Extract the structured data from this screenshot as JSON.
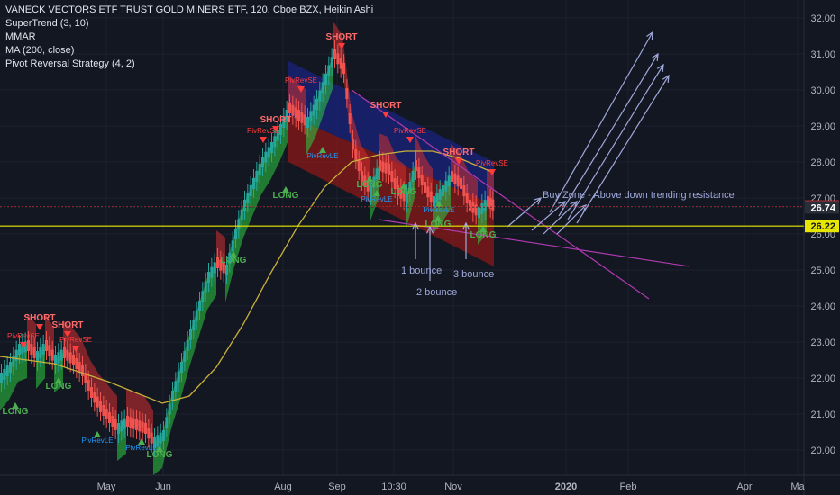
{
  "header": {
    "symbol_line": "VANECK VECTORS ETF TRUST GOLD MINERS ETF, 120, Cboe BZX, Heikin Ashi",
    "indicators": [
      "SuperTrend (3, 10)",
      "MMAR",
      "MA (200, close)",
      "Pivot Reversal Strategy (4, 2)"
    ]
  },
  "colors": {
    "background": "#131722",
    "grid": "#1e2230",
    "up": "#26a69a",
    "down": "#ef5350",
    "ribbon_green": "#2ecc40",
    "ribbon_red": "#d32f2f",
    "ma": "#c9b03a",
    "channel_blue": "#1a237e",
    "channel_red": "#8b1a1a",
    "yellow_line": "#e6e600",
    "magenta_line": "#b03ab0",
    "arrow": "#9fa8da",
    "annotation": "#9fa8da",
    "badge_red": "#d32f2f",
    "badge_dark": "#2a2e39",
    "signal_red": "#ff3b3b",
    "signal_blue": "#2196f3"
  },
  "chart_data": {
    "type": "candlestick",
    "style": "Heikin Ashi",
    "interval": "120",
    "xaxis_ticks": [
      "May",
      "Jun",
      "Aug",
      "Sep",
      "10:30",
      "Nov",
      "2020",
      "Feb",
      "Apr",
      "Ma"
    ],
    "xaxis_tick_x": [
      118,
      181,
      314,
      374,
      437,
      503,
      628,
      697,
      826,
      885
    ],
    "yaxis_ticks": [
      20.0,
      21.0,
      22.0,
      23.0,
      24.0,
      25.0,
      26.0,
      27.0,
      28.0,
      29.0,
      30.0,
      31.0,
      32.0
    ],
    "ylim": [
      19.3,
      32.5
    ],
    "price_labels": [
      {
        "value": 26.76,
        "text": "26.76",
        "style": "red"
      },
      {
        "value": 26.74,
        "text": "26.74",
        "style": "dark"
      },
      {
        "value": 26.22,
        "text": "26.22",
        "style": "yellow"
      }
    ],
    "price_path": [
      [
        0,
        22.0
      ],
      [
        10,
        22.3
      ],
      [
        20,
        22.8
      ],
      [
        30,
        22.9
      ],
      [
        40,
        22.6
      ],
      [
        50,
        22.9
      ],
      [
        60,
        22.5
      ],
      [
        70,
        22.7
      ],
      [
        80,
        22.5
      ],
      [
        90,
        22.2
      ],
      [
        100,
        21.6
      ],
      [
        110,
        21.2
      ],
      [
        120,
        20.9
      ],
      [
        130,
        20.6
      ],
      [
        140,
        20.8
      ],
      [
        150,
        20.7
      ],
      [
        160,
        20.6
      ],
      [
        170,
        20.2
      ],
      [
        180,
        20.4
      ],
      [
        190,
        21.5
      ],
      [
        200,
        22.3
      ],
      [
        210,
        23.2
      ],
      [
        220,
        24.0
      ],
      [
        230,
        24.8
      ],
      [
        240,
        25.2
      ],
      [
        250,
        25.0
      ],
      [
        260,
        26.0
      ],
      [
        270,
        26.8
      ],
      [
        280,
        27.4
      ],
      [
        290,
        28.0
      ],
      [
        300,
        28.4
      ],
      [
        310,
        28.9
      ],
      [
        320,
        29.5
      ],
      [
        330,
        29.3
      ],
      [
        340,
        29.1
      ],
      [
        350,
        29.6
      ],
      [
        360,
        30.3
      ],
      [
        370,
        31.0
      ],
      [
        380,
        30.6
      ],
      [
        390,
        28.5
      ],
      [
        400,
        27.6
      ],
      [
        410,
        27.2
      ],
      [
        420,
        27.9
      ],
      [
        430,
        27.8
      ],
      [
        440,
        27.2
      ],
      [
        450,
        27.0
      ],
      [
        460,
        27.9
      ],
      [
        470,
        27.3
      ],
      [
        480,
        26.9
      ],
      [
        490,
        27.2
      ],
      [
        500,
        27.6
      ],
      [
        510,
        27.4
      ],
      [
        520,
        26.8
      ],
      [
        530,
        26.6
      ],
      [
        540,
        26.9
      ],
      [
        548,
        26.76
      ]
    ],
    "ma_path": [
      [
        0,
        22.6
      ],
      [
        60,
        22.4
      ],
      [
        120,
        21.9
      ],
      [
        180,
        21.3
      ],
      [
        210,
        21.5
      ],
      [
        240,
        22.3
      ],
      [
        270,
        23.5
      ],
      [
        300,
        24.9
      ],
      [
        330,
        26.2
      ],
      [
        360,
        27.3
      ],
      [
        390,
        28.0
      ],
      [
        420,
        28.2
      ],
      [
        450,
        28.3
      ],
      [
        480,
        28.3
      ],
      [
        510,
        28.1
      ],
      [
        548,
        27.7
      ]
    ],
    "channel_blue": [
      [
        320,
        30.8
      ],
      [
        548,
        28.0
      ],
      [
        548,
        26.8
      ],
      [
        320,
        29.3
      ]
    ],
    "channel_red": [
      [
        320,
        29.3
      ],
      [
        548,
        26.8
      ],
      [
        548,
        25.1
      ],
      [
        320,
        28.0
      ]
    ],
    "trend_lines": [
      {
        "from": [
          390,
          30.0
        ],
        "to": [
          720,
          24.2
        ],
        "color": "magenta"
      },
      {
        "from": [
          420,
          26.4
        ],
        "to": [
          765,
          25.1
        ],
        "color": "magenta"
      },
      {
        "from": [
          0,
          26.22
        ],
        "to": [
          892,
          26.22
        ],
        "color": "yellow"
      }
    ],
    "arrows": [
      {
        "from": [
          610,
          26.6
        ],
        "to": [
          724,
          31.6
        ]
      },
      {
        "from": [
          620,
          26.5
        ],
        "to": [
          730,
          31.0
        ]
      },
      {
        "from": [
          630,
          26.4
        ],
        "to": [
          736,
          30.7
        ]
      },
      {
        "from": [
          640,
          26.3
        ],
        "to": [
          742,
          30.4
        ]
      },
      {
        "from": [
          563,
          26.2
        ],
        "to": [
          600,
          27.0
        ]
      },
      {
        "from": [
          590,
          26.1
        ],
        "to": [
          627,
          26.9
        ]
      },
      {
        "from": [
          603,
          26.0
        ],
        "to": [
          640,
          26.9
        ]
      },
      {
        "from": [
          618,
          26.0
        ],
        "to": [
          650,
          26.8
        ]
      }
    ],
    "bounce_arrows": [
      {
        "x": 461,
        "from": 25.3,
        "to": 26.3
      },
      {
        "x": 477,
        "from": 24.7,
        "to": 26.2
      },
      {
        "x": 517,
        "from": 25.3,
        "to": 26.3
      }
    ],
    "annotations": [
      {
        "text": "Buy Zone - Above down trending resistance",
        "x": 602,
        "y": 27.0
      },
      {
        "text": "1 bounce",
        "x": 445,
        "y": 24.9
      },
      {
        "text": "2 bounce",
        "x": 462,
        "y": 24.3
      },
      {
        "text": "3 bounce",
        "x": 503,
        "y": 24.8
      }
    ],
    "signals": [
      {
        "text": "SHORT",
        "x": 44,
        "y": 23.6,
        "kind": "short"
      },
      {
        "text": "SHORT",
        "x": 75,
        "y": 23.4,
        "kind": "short"
      },
      {
        "text": "SHORT",
        "x": 306,
        "y": 29.1,
        "kind": "short"
      },
      {
        "text": "SHORT",
        "x": 379,
        "y": 31.4,
        "kind": "short"
      },
      {
        "text": "SHORT",
        "x": 428,
        "y": 29.5,
        "kind": "short"
      },
      {
        "text": "SHORT",
        "x": 509,
        "y": 28.2,
        "kind": "short"
      },
      {
        "text": "LONG",
        "x": 17,
        "y": 21.0,
        "kind": "long"
      },
      {
        "text": "LONG",
        "x": 65,
        "y": 21.7,
        "kind": "long"
      },
      {
        "text": "LONG",
        "x": 177,
        "y": 19.8,
        "kind": "long"
      },
      {
        "text": "LONG",
        "x": 259,
        "y": 25.2,
        "kind": "long"
      },
      {
        "text": "LONG",
        "x": 317,
        "y": 27.0,
        "kind": "long"
      },
      {
        "text": "LONG",
        "x": 410,
        "y": 27.3,
        "kind": "long"
      },
      {
        "text": "LONG",
        "x": 448,
        "y": 27.1,
        "kind": "long"
      },
      {
        "text": "LONG",
        "x": 486,
        "y": 26.2,
        "kind": "long"
      },
      {
        "text": "LONG",
        "x": 536,
        "y": 25.9,
        "kind": "long"
      },
      {
        "text": "PivRevSE",
        "x": 26,
        "y": 23.1,
        "kind": "short"
      },
      {
        "text": "PivRevSE",
        "x": 84,
        "y": 23.0,
        "kind": "short"
      },
      {
        "text": "PivRevSE",
        "x": 334,
        "y": 30.2,
        "kind": "short"
      },
      {
        "text": "PivRevSE",
        "x": 292,
        "y": 28.8,
        "kind": "short"
      },
      {
        "text": "PivRevSE",
        "x": 455,
        "y": 28.8,
        "kind": "short"
      },
      {
        "text": "PivRevSE",
        "x": 546,
        "y": 27.9,
        "kind": "short"
      },
      {
        "text": "PivRevLE",
        "x": 108,
        "y": 20.2,
        "kind": "long"
      },
      {
        "text": "PivRevLE",
        "x": 157,
        "y": 20.0,
        "kind": "long"
      },
      {
        "text": "PivRevLE",
        "x": 358,
        "y": 28.1,
        "kind": "long"
      },
      {
        "text": "PivRevLE",
        "x": 418,
        "y": 26.9,
        "kind": "long"
      },
      {
        "text": "PivRevLE",
        "x": 487,
        "y": 26.6,
        "kind": "long"
      }
    ]
  }
}
